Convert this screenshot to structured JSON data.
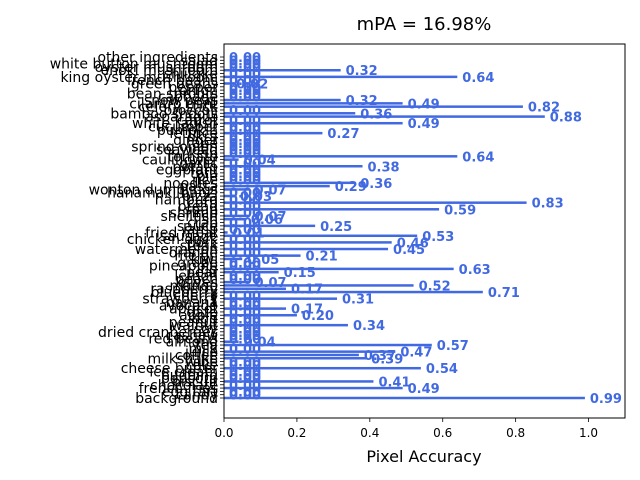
{
  "chart_data": {
    "type": "bar",
    "orientation": "horizontal",
    "title": "mPA = 16.98%",
    "xlabel": "Pixel Accuracy",
    "ylabel": "",
    "xlim": [
      0,
      1.1
    ],
    "xticks": [
      "0.0",
      "0.2",
      "0.4",
      "0.6",
      "0.8",
      "1.0"
    ],
    "grid": false,
    "bar_color": "#4169e1",
    "label_color": "#4169e1",
    "categories": [
      "background",
      "candy",
      "egg tart",
      "french fries",
      "chocolate",
      "biscuit",
      "popcorn",
      "pudding",
      "ice cream",
      "cheese butter",
      "cake",
      "wine",
      "milkshake",
      "coffee",
      "juice",
      "milk",
      "tea",
      "almond",
      "red beans",
      "cashew",
      "dried cranberries",
      "soy",
      "walnut",
      "peanut",
      "egg",
      "apple",
      "date",
      "apricot",
      "avocado",
      "banana",
      "strawberry",
      "cherry",
      "blueberry",
      "raspberry",
      "mango",
      "olives",
      "peach",
      "lemon",
      "pear",
      "fig",
      "pineapple",
      "grape",
      "kiwi",
      "melon",
      "orange",
      "watermelon",
      "steak",
      "pork",
      "chicken duck",
      "sausage",
      "fried meat",
      "lamb",
      "sauce",
      "crab",
      "fish",
      "shellfish",
      "shrimp",
      "soup",
      "bread",
      "corn",
      "hamburg",
      "pizza",
      "hanamaki baozi",
      "wonton dumplings",
      "pasta",
      "noodles",
      "rice",
      "pie",
      "tofu",
      "eggplant",
      "potato",
      "garlic",
      "cauliflower",
      "tomato",
      "kelp",
      "seaweed",
      "spring onion",
      "rape",
      "ginger",
      "okra",
      "lettuce",
      "pumpkin",
      "cucumber",
      "white radish",
      "carrot",
      "asparagus",
      "bamboo shoots",
      "broccoli",
      "celery stick",
      "cilantro mint",
      "snow peas",
      "cabbage",
      "bean sprouts",
      "onion",
      "pepper",
      "green beans",
      "french beans",
      "king oyster mushroom",
      "shiitake",
      "enoki mushroom",
      "oyster mushroom",
      "white button mushroom",
      "salad",
      "other ingredients"
    ],
    "values": [
      0.99,
      0.0,
      0.0,
      0.49,
      0.0,
      0.41,
      0.0,
      0.0,
      0.0,
      0.54,
      0.0,
      0.0,
      0.39,
      0.37,
      0.47,
      0.0,
      0.57,
      0.04,
      0.0,
      0.0,
      0.0,
      0.0,
      0.34,
      0.0,
      0.0,
      0.2,
      0.0,
      0.17,
      0.0,
      0.0,
      0.31,
      0.0,
      0.71,
      0.17,
      0.52,
      0.07,
      0.0,
      0.0,
      0.15,
      0.63,
      0.0,
      0.0,
      0.05,
      0.21,
      0.0,
      0.45,
      0.0,
      0.46,
      0.0,
      0.53,
      0.01,
      0.0,
      0.25,
      0.0,
      0.06,
      0.07,
      0.0,
      0.59,
      0.0,
      0.83,
      0.0,
      0.03,
      0.0,
      0.07,
      0.29,
      0.36,
      0.0,
      0.0,
      0.0,
      0.0,
      0.38,
      0.0,
      0.04,
      0.64,
      0.0,
      0.0,
      0.0,
      0.0,
      0.0,
      0.0,
      0.27,
      0.0,
      0.0,
      0.49,
      0.0,
      0.88,
      0.36,
      0.0,
      0.82,
      0.49,
      0.32,
      0.0,
      0.0,
      0.0,
      0.0,
      0.02,
      0.0,
      0.64,
      0.0,
      0.32,
      0.0,
      0.0,
      0.0,
      0.0
    ],
    "value_labels": [
      "0.99",
      "0.00",
      "0.00",
      "0.49",
      "0.00",
      "0.41",
      "0.00",
      "0.00",
      "0.00",
      "0.54",
      "0.00",
      "0.00",
      "0.39",
      "0.37",
      "0.47",
      "0.00",
      "0.57",
      "0.04",
      "0.00",
      "0.00",
      "0.00",
      "0.00",
      "0.34",
      "0.00",
      "0.00",
      "0.20",
      "0.00",
      "0.17",
      "0.00",
      "0.00",
      "0.31",
      "0.00",
      "0.71",
      "0.17",
      "0.52",
      "0.07",
      "0.00",
      "0.00",
      "0.15",
      "0.63",
      "0.00",
      "0.00",
      "0.05",
      "0.21",
      "0.00",
      "0.45",
      "0.00",
      "0.46",
      "0.00",
      "0.53",
      "0.01",
      "0.00",
      "0.25",
      "0.00",
      "0.06",
      "0.07",
      "0.00",
      "0.59",
      "0.00",
      "0.83",
      "0.00",
      "0.03",
      "0.00",
      "0.07",
      "0.29",
      "0.36",
      "0.00",
      "0.00",
      "0.00",
      "0.00",
      "0.38",
      "0.00",
      "0.04",
      "0.64",
      "0.00",
      "0.00",
      "0.00",
      "0.00",
      "0.00",
      "0.00",
      "0.27",
      "0.00",
      "0.00",
      "0.49",
      "0.00",
      "0.88",
      "0.36",
      "0.00",
      "0.82",
      "0.49",
      "0.32",
      "0.00",
      "0.00",
      "0.00",
      "0.00",
      "0.02",
      "0.00",
      "0.64",
      "0.00",
      "0.32",
      "0.00",
      "0.00",
      "0.00",
      "0.00"
    ]
  }
}
